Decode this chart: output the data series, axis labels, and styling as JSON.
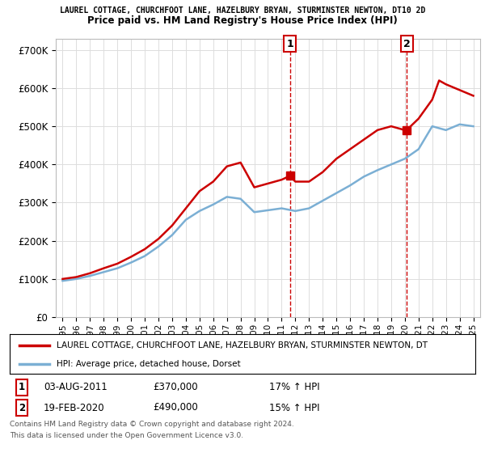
{
  "title_line1": "LAUREL COTTAGE, CHURCHFOOT LANE, HAZELBURY BRYAN, STURMINSTER NEWTON, DT10 2D",
  "title_line2": "Price paid vs. HM Land Registry's House Price Index (HPI)",
  "ylabel_ticks": [
    "£0",
    "£100K",
    "£200K",
    "£300K",
    "£400K",
    "£500K",
    "£600K",
    "£700K"
  ],
  "ytick_values": [
    0,
    100000,
    200000,
    300000,
    400000,
    500000,
    600000,
    700000
  ],
  "ylim": [
    0,
    730000
  ],
  "sale1_date": "03-AUG-2011",
  "sale1_price": 370000,
  "sale1_hpi": "17% ↑ HPI",
  "sale1_x": 2011.6,
  "sale2_date": "19-FEB-2020",
  "sale2_price": 490000,
  "sale2_hpi": "15% ↑ HPI",
  "sale2_x": 2020.13,
  "hpi_color": "#7bafd4",
  "price_color": "#cc0000",
  "vline_color": "#cc0000",
  "legend_label_price": "LAUREL COTTAGE, CHURCHFOOT LANE, HAZELBURY BRYAN, STURMINSTER NEWTON, DT",
  "legend_label_hpi": "HPI: Average price, detached house, Dorset",
  "footer1": "Contains HM Land Registry data © Crown copyright and database right 2024.",
  "footer2": "This data is licensed under the Open Government Licence v3.0.",
  "background_color": "#ffffff",
  "grid_color": "#dddddd",
  "xlim_start": 1994.5,
  "xlim_end": 2025.5,
  "xtick_years": [
    1995,
    1996,
    1997,
    1998,
    1999,
    2000,
    2001,
    2002,
    2003,
    2004,
    2005,
    2006,
    2007,
    2008,
    2009,
    2010,
    2011,
    2012,
    2013,
    2014,
    2015,
    2016,
    2017,
    2018,
    2019,
    2020,
    2021,
    2022,
    2023,
    2024,
    2025
  ],
  "hpi_years": [
    1995,
    1996,
    1997,
    1998,
    1999,
    2000,
    2001,
    2002,
    2003,
    2004,
    2005,
    2006,
    2007,
    2008,
    2009,
    2010,
    2011,
    2012,
    2013,
    2014,
    2015,
    2016,
    2017,
    2018,
    2019,
    2020,
    2021,
    2022,
    2023,
    2024,
    2025
  ],
  "hpi_values": [
    95000,
    100000,
    108000,
    118000,
    128000,
    143000,
    160000,
    185000,
    215000,
    255000,
    278000,
    295000,
    315000,
    310000,
    275000,
    280000,
    285000,
    278000,
    285000,
    305000,
    325000,
    345000,
    368000,
    385000,
    400000,
    415000,
    440000,
    500000,
    490000,
    505000,
    500000
  ],
  "price_years": [
    1995,
    1996,
    1997,
    1998,
    1999,
    2000,
    2001,
    2002,
    2003,
    2004,
    2005,
    2006,
    2007,
    2008,
    2009,
    2010,
    2011,
    2011.6,
    2012,
    2013,
    2014,
    2015,
    2016,
    2017,
    2018,
    2019,
    2020,
    2020.13,
    2021,
    2022,
    2022.5,
    2023,
    2024,
    2025
  ],
  "price_values": [
    100000,
    105000,
    115000,
    128000,
    140000,
    158000,
    178000,
    205000,
    240000,
    285000,
    330000,
    355000,
    395000,
    405000,
    340000,
    350000,
    360000,
    370000,
    355000,
    355000,
    380000,
    415000,
    440000,
    465000,
    490000,
    500000,
    490000,
    490000,
    520000,
    570000,
    620000,
    610000,
    595000,
    580000
  ]
}
